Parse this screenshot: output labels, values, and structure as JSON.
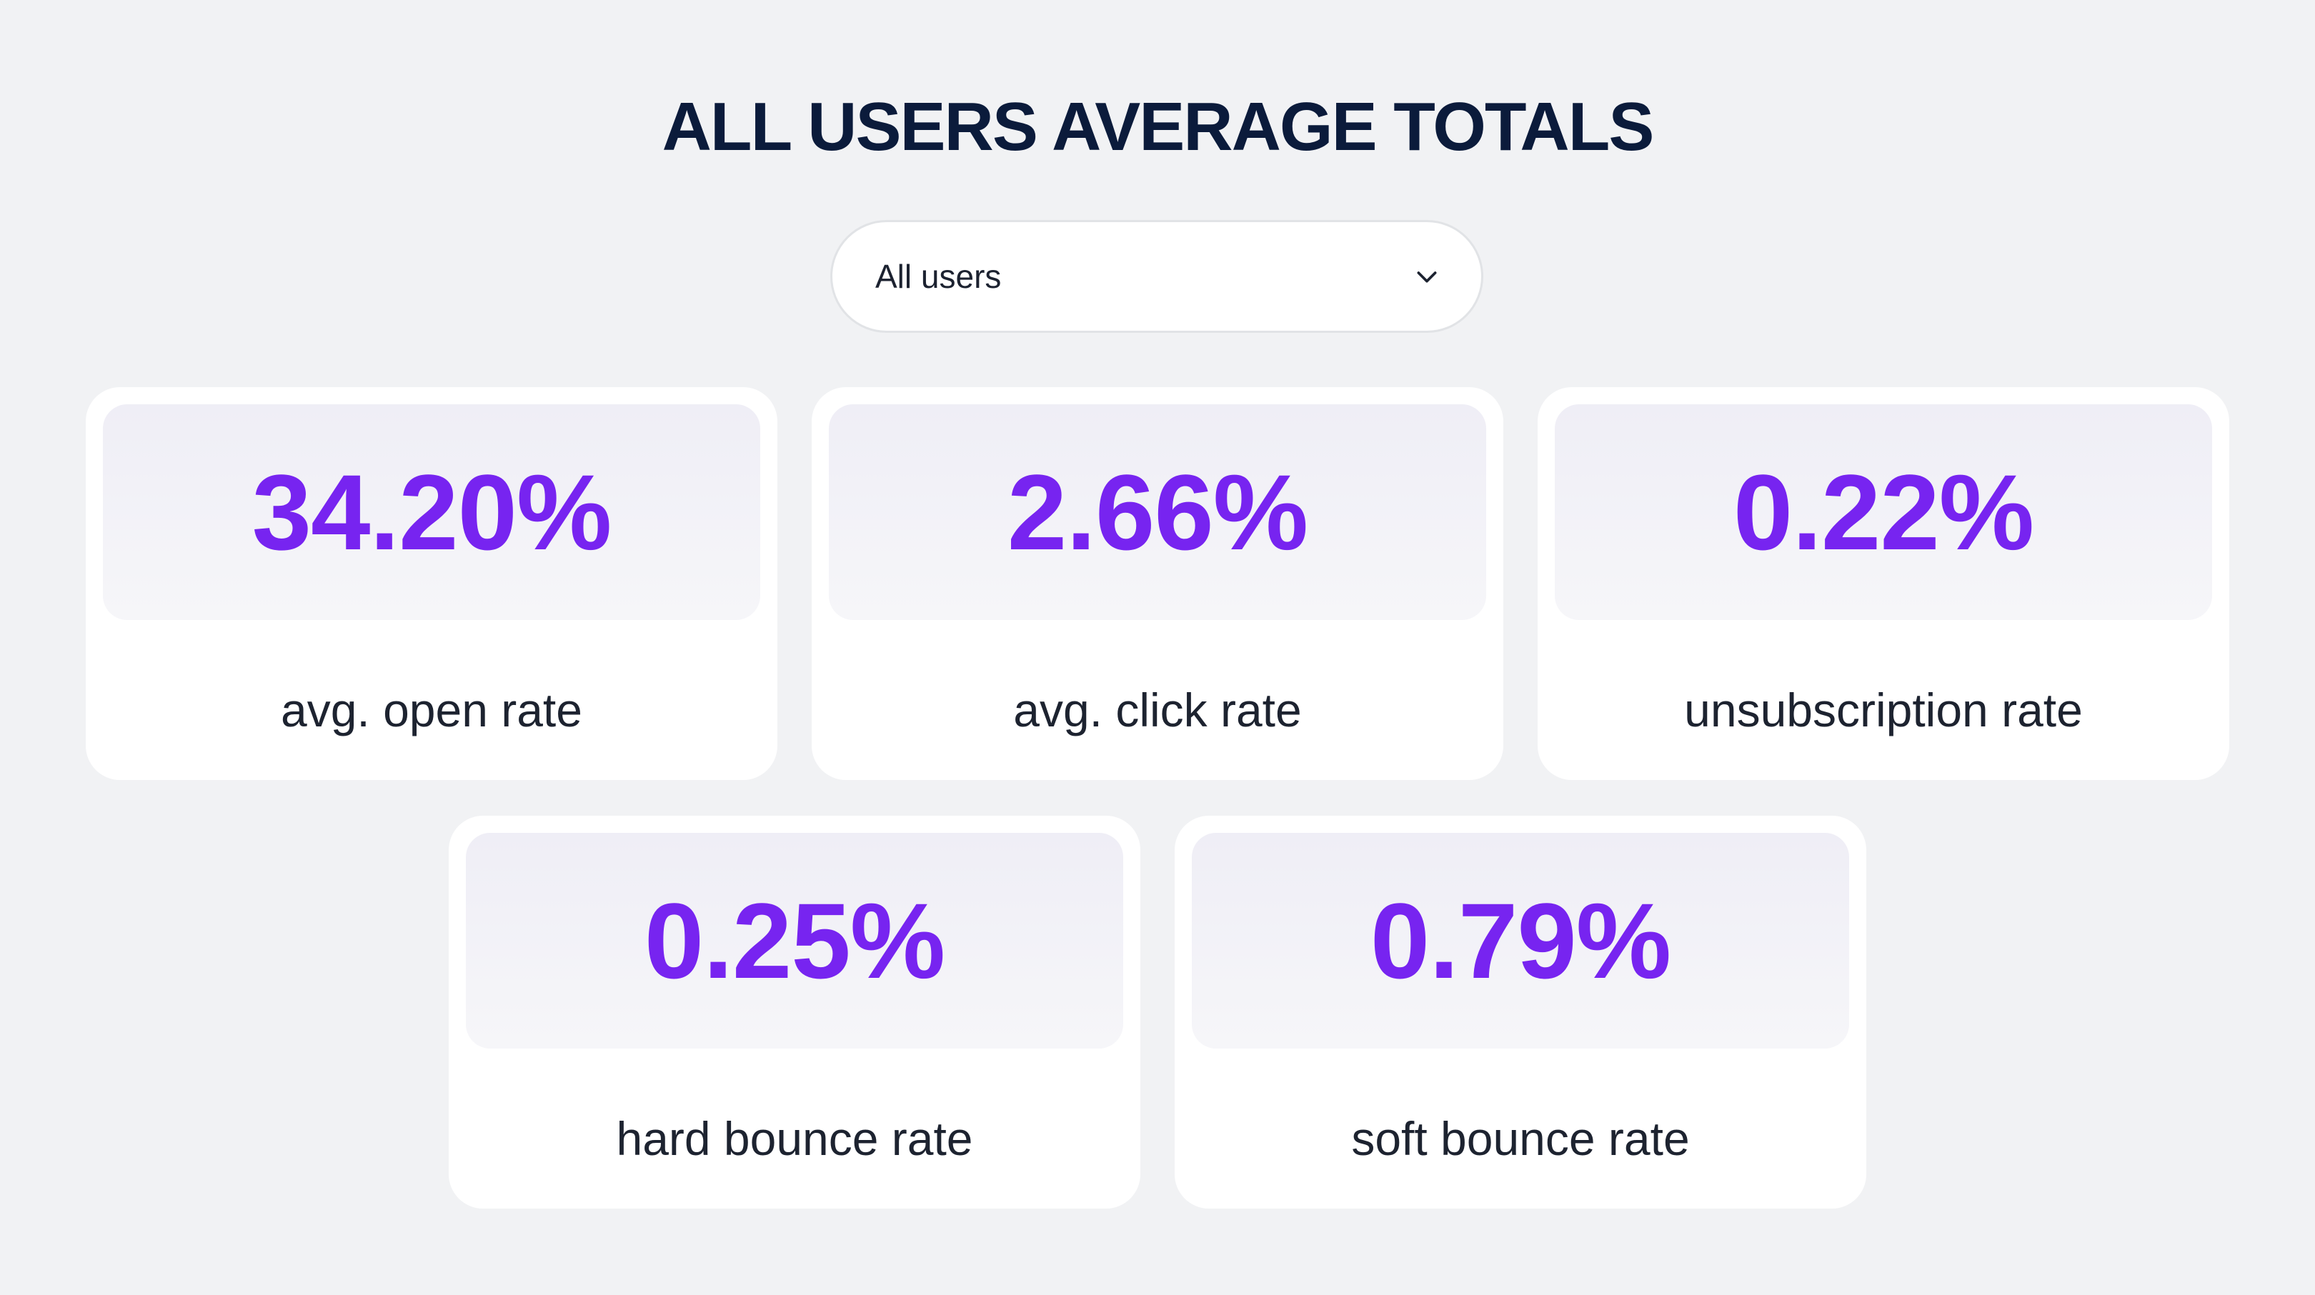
{
  "header": {
    "title": "ALL USERS AVERAGE TOTALS"
  },
  "filter": {
    "selected": "All users",
    "icon": "chevron-down-icon"
  },
  "metrics": [
    {
      "value": "34.20%",
      "label": "avg. open rate"
    },
    {
      "value": "2.66%",
      "label": "avg. click rate"
    },
    {
      "value": "0.22%",
      "label": "unsubscription rate"
    },
    {
      "value": "0.25%",
      "label": "hard bounce rate"
    },
    {
      "value": "0.79%",
      "label": "soft bounce rate"
    }
  ],
  "colors": {
    "accent": "#7724f0",
    "title": "#0b1b3b",
    "background": "#f1f2f4"
  }
}
